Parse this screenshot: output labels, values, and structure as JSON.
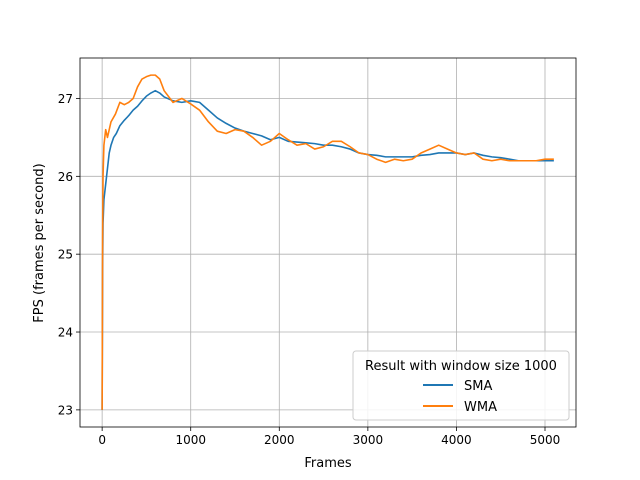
{
  "chart_data": {
    "type": "line",
    "title": "",
    "xlabel": "Frames",
    "ylabel": "FPS (frames per second)",
    "xlim": [
      -250,
      5350
    ],
    "ylim": [
      22.78,
      27.52
    ],
    "xticks": [
      0,
      1000,
      2000,
      3000,
      4000,
      5000
    ],
    "yticks": [
      23,
      24,
      25,
      26,
      27
    ],
    "grid": true,
    "legend": {
      "title": "Result with window size 1000",
      "position": "lower-right"
    },
    "series": [
      {
        "name": "SMA",
        "color": "#1f77b4",
        "points": [
          [
            0,
            23.0
          ],
          [
            5,
            24.8
          ],
          [
            10,
            25.4
          ],
          [
            20,
            25.7
          ],
          [
            40,
            25.9
          ],
          [
            60,
            26.1
          ],
          [
            80,
            26.3
          ],
          [
            100,
            26.4
          ],
          [
            130,
            26.5
          ],
          [
            160,
            26.55
          ],
          [
            200,
            26.65
          ],
          [
            250,
            26.72
          ],
          [
            300,
            26.78
          ],
          [
            350,
            26.85
          ],
          [
            400,
            26.9
          ],
          [
            450,
            26.97
          ],
          [
            500,
            27.03
          ],
          [
            550,
            27.07
          ],
          [
            600,
            27.1
          ],
          [
            650,
            27.07
          ],
          [
            700,
            27.02
          ],
          [
            800,
            26.97
          ],
          [
            900,
            26.95
          ],
          [
            1000,
            26.97
          ],
          [
            1100,
            26.95
          ],
          [
            1200,
            26.85
          ],
          [
            1300,
            26.75
          ],
          [
            1400,
            26.68
          ],
          [
            1500,
            26.62
          ],
          [
            1600,
            26.58
          ],
          [
            1700,
            26.55
          ],
          [
            1800,
            26.52
          ],
          [
            1900,
            26.47
          ],
          [
            2000,
            26.5
          ],
          [
            2100,
            26.45
          ],
          [
            2200,
            26.44
          ],
          [
            2300,
            26.43
          ],
          [
            2400,
            26.42
          ],
          [
            2500,
            26.4
          ],
          [
            2600,
            26.4
          ],
          [
            2700,
            26.38
          ],
          [
            2800,
            26.35
          ],
          [
            2900,
            26.3
          ],
          [
            3000,
            26.28
          ],
          [
            3100,
            26.27
          ],
          [
            3200,
            26.25
          ],
          [
            3300,
            26.25
          ],
          [
            3400,
            26.25
          ],
          [
            3500,
            26.25
          ],
          [
            3600,
            26.27
          ],
          [
            3700,
            26.28
          ],
          [
            3800,
            26.3
          ],
          [
            3900,
            26.3
          ],
          [
            4000,
            26.3
          ],
          [
            4100,
            26.28
          ],
          [
            4200,
            26.3
          ],
          [
            4300,
            26.27
          ],
          [
            4400,
            26.25
          ],
          [
            4500,
            26.24
          ],
          [
            4600,
            26.22
          ],
          [
            4700,
            26.2
          ],
          [
            4800,
            26.2
          ],
          [
            4900,
            26.2
          ],
          [
            5000,
            26.2
          ],
          [
            5100,
            26.2
          ]
        ]
      },
      {
        "name": "WMA",
        "color": "#ff7f0e",
        "points": [
          [
            0,
            23.0
          ],
          [
            5,
            25.2
          ],
          [
            10,
            26.0
          ],
          [
            20,
            26.4
          ],
          [
            40,
            26.6
          ],
          [
            60,
            26.5
          ],
          [
            80,
            26.6
          ],
          [
            100,
            26.7
          ],
          [
            150,
            26.8
          ],
          [
            200,
            26.95
          ],
          [
            250,
            26.92
          ],
          [
            300,
            26.95
          ],
          [
            350,
            27.0
          ],
          [
            400,
            27.15
          ],
          [
            450,
            27.25
          ],
          [
            500,
            27.28
          ],
          [
            550,
            27.3
          ],
          [
            600,
            27.3
          ],
          [
            650,
            27.25
          ],
          [
            700,
            27.1
          ],
          [
            800,
            26.95
          ],
          [
            900,
            27.0
          ],
          [
            1000,
            26.93
          ],
          [
            1100,
            26.85
          ],
          [
            1200,
            26.7
          ],
          [
            1300,
            26.58
          ],
          [
            1400,
            26.55
          ],
          [
            1500,
            26.6
          ],
          [
            1600,
            26.58
          ],
          [
            1700,
            26.5
          ],
          [
            1800,
            26.4
          ],
          [
            1900,
            26.45
          ],
          [
            2000,
            26.55
          ],
          [
            2100,
            26.47
          ],
          [
            2200,
            26.4
          ],
          [
            2300,
            26.42
          ],
          [
            2400,
            26.35
          ],
          [
            2500,
            26.38
          ],
          [
            2600,
            26.45
          ],
          [
            2700,
            26.45
          ],
          [
            2800,
            26.38
          ],
          [
            2900,
            26.3
          ],
          [
            3000,
            26.28
          ],
          [
            3100,
            26.22
          ],
          [
            3200,
            26.18
          ],
          [
            3300,
            26.22
          ],
          [
            3400,
            26.2
          ],
          [
            3500,
            26.22
          ],
          [
            3600,
            26.3
          ],
          [
            3700,
            26.35
          ],
          [
            3800,
            26.4
          ],
          [
            3900,
            26.35
          ],
          [
            4000,
            26.3
          ],
          [
            4100,
            26.28
          ],
          [
            4200,
            26.3
          ],
          [
            4300,
            26.22
          ],
          [
            4400,
            26.2
          ],
          [
            4500,
            26.22
          ],
          [
            4600,
            26.2
          ],
          [
            4700,
            26.2
          ],
          [
            4800,
            26.2
          ],
          [
            4900,
            26.2
          ],
          [
            5000,
            26.22
          ],
          [
            5100,
            26.22
          ]
        ]
      }
    ]
  }
}
